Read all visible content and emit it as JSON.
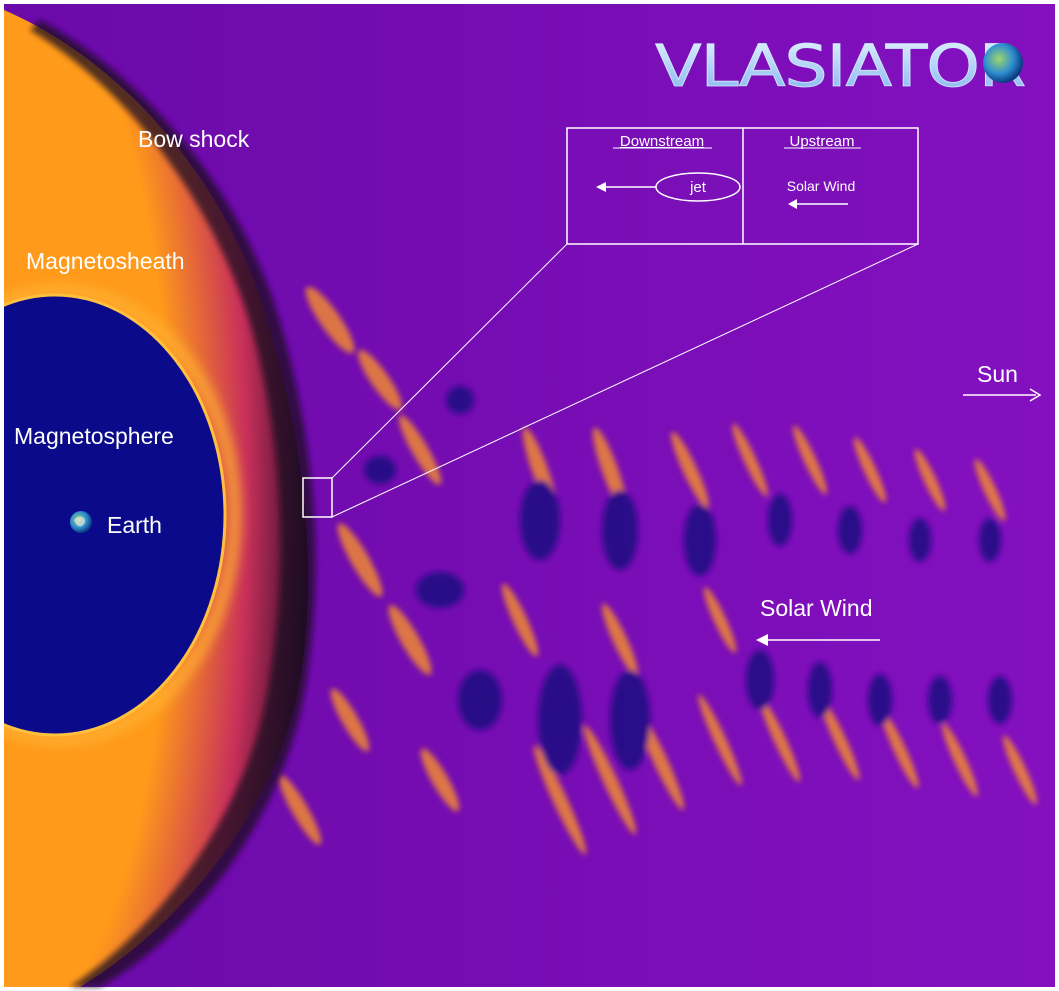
{
  "logo": {
    "text": "VLASIATOR"
  },
  "labels": {
    "bow_shock": "Bow shock",
    "magnetosheath": "Magnetosheath",
    "magnetosphere": "Magnetosphere",
    "earth": "Earth",
    "sun": "Sun",
    "solar_wind": "Solar Wind"
  },
  "inset": {
    "downstream": "Downstream",
    "upstream": "Upstream",
    "jet": "jet",
    "solar_wind": "Solar Wind"
  },
  "colors": {
    "background_plasma": "#7a10b8",
    "magnetosphere": "#0a0a8a",
    "shock_glow": "#ff9a1a",
    "annotation": "#ffffff"
  }
}
